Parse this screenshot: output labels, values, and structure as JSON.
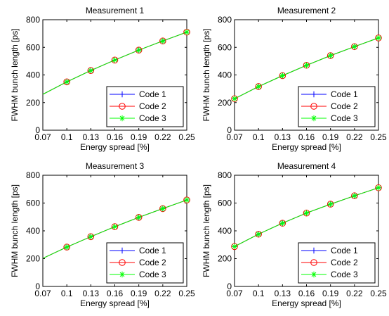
{
  "series_styles": [
    {
      "name": "Code 1",
      "color": "#0000ff",
      "marker": "plus"
    },
    {
      "name": "Code 2",
      "color": "#ff0000",
      "marker": "circle"
    },
    {
      "name": "Code 3",
      "color": "#00ff00",
      "marker": "star"
    }
  ],
  "chart_data": [
    {
      "type": "line",
      "title": "Measurement 1",
      "xlabel": "Energy spread [%]",
      "ylabel": "FWHM bunch length [ps]",
      "xlim": [
        0.07,
        0.25
      ],
      "ylim": [
        0,
        800
      ],
      "xticks": [
        0.07,
        0.1,
        0.13,
        0.16,
        0.19,
        0.22,
        0.25
      ],
      "xtick_labels": [
        "0.07",
        "0.1",
        "0.13",
        "0.16",
        "0.19",
        "0.22",
        "0.25"
      ],
      "yticks": [
        0,
        200,
        400,
        600,
        800
      ],
      "ytick_labels": [
        "0",
        "200",
        "400",
        "600",
        "800"
      ],
      "grid": false,
      "legend_position": "bottom-right",
      "line_x": [
        0.07,
        0.1,
        0.13,
        0.16,
        0.19,
        0.22,
        0.25
      ],
      "line_y": [
        260,
        350,
        432,
        508,
        580,
        646,
        710
      ],
      "marker_x": [
        0.1,
        0.13,
        0.16,
        0.19,
        0.22,
        0.25
      ],
      "series": [
        {
          "name": "Code 1",
          "values": [
            350,
            432,
            508,
            580,
            646,
            710
          ]
        },
        {
          "name": "Code 2",
          "values": [
            350,
            432,
            508,
            580,
            646,
            710
          ]
        },
        {
          "name": "Code 3",
          "values": [
            350,
            432,
            508,
            580,
            646,
            710
          ]
        }
      ]
    },
    {
      "type": "line",
      "title": "Measurement 2",
      "xlabel": "Energy spread [%]",
      "ylabel": "FWHM bunch length [ps]",
      "xlim": [
        0.07,
        0.25
      ],
      "ylim": [
        0,
        800
      ],
      "xticks": [
        0.07,
        0.1,
        0.13,
        0.16,
        0.19,
        0.22,
        0.25
      ],
      "xtick_labels": [
        "0.07",
        "0.1",
        "0.13",
        "0.16",
        "0.19",
        "0.22",
        "0.25"
      ],
      "yticks": [
        0,
        200,
        400,
        600,
        800
      ],
      "ytick_labels": [
        "0",
        "200",
        "400",
        "600",
        "800"
      ],
      "grid": false,
      "legend_position": "bottom-right",
      "line_x": [
        0.07,
        0.1,
        0.13,
        0.16,
        0.19,
        0.22,
        0.25
      ],
      "line_y": [
        228,
        316,
        395,
        470,
        540,
        605,
        668
      ],
      "marker_x": [
        0.07,
        0.1,
        0.13,
        0.16,
        0.19,
        0.22,
        0.25
      ],
      "series": [
        {
          "name": "Code 1",
          "values": [
            228,
            316,
            395,
            470,
            540,
            605,
            668
          ]
        },
        {
          "name": "Code 2",
          "values": [
            228,
            316,
            395,
            470,
            540,
            605,
            668
          ]
        },
        {
          "name": "Code 3",
          "values": [
            228,
            316,
            395,
            470,
            540,
            605,
            668
          ]
        }
      ]
    },
    {
      "type": "line",
      "title": "Measurement 3",
      "xlabel": "Energy spread [%]",
      "ylabel": "FWHM bunch length [ps]",
      "xlim": [
        0.07,
        0.25
      ],
      "ylim": [
        0,
        800
      ],
      "xticks": [
        0.07,
        0.1,
        0.13,
        0.16,
        0.19,
        0.22,
        0.25
      ],
      "xtick_labels": [
        "0.07",
        "0.1",
        "0.13",
        "0.16",
        "0.19",
        "0.22",
        "0.25"
      ],
      "yticks": [
        0,
        200,
        400,
        600,
        800
      ],
      "ytick_labels": [
        "0",
        "200",
        "400",
        "600",
        "800"
      ],
      "grid": false,
      "legend_position": "bottom-right",
      "line_x": [
        0.07,
        0.1,
        0.13,
        0.16,
        0.19,
        0.22,
        0.25
      ],
      "line_y": [
        202,
        283,
        358,
        430,
        497,
        560,
        622
      ],
      "marker_x": [
        0.1,
        0.13,
        0.16,
        0.19,
        0.22,
        0.25
      ],
      "series": [
        {
          "name": "Code 1",
          "values": [
            283,
            358,
            430,
            497,
            560,
            622
          ]
        },
        {
          "name": "Code 2",
          "values": [
            283,
            358,
            430,
            497,
            560,
            622
          ]
        },
        {
          "name": "Code 3",
          "values": [
            283,
            358,
            430,
            497,
            560,
            622
          ]
        }
      ]
    },
    {
      "type": "line",
      "title": "Measurement 4",
      "xlabel": "Energy spread [%]",
      "ylabel": "FWHM bunch length [ps]",
      "xlim": [
        0.07,
        0.25
      ],
      "ylim": [
        0,
        800
      ],
      "xticks": [
        0.07,
        0.1,
        0.13,
        0.16,
        0.19,
        0.22,
        0.25
      ],
      "xtick_labels": [
        "0.07",
        "0.1",
        "0.13",
        "0.16",
        "0.19",
        "0.22",
        "0.25"
      ],
      "yticks": [
        0,
        200,
        400,
        600,
        800
      ],
      "ytick_labels": [
        "0",
        "200",
        "400",
        "600",
        "800"
      ],
      "grid": false,
      "legend_position": "bottom-right",
      "line_x": [
        0.07,
        0.1,
        0.13,
        0.16,
        0.19,
        0.22,
        0.25
      ],
      "line_y": [
        287,
        376,
        455,
        528,
        592,
        652,
        710
      ],
      "marker_x": [
        0.07,
        0.1,
        0.13,
        0.16,
        0.19,
        0.22,
        0.25
      ],
      "series": [
        {
          "name": "Code 1",
          "values": [
            287,
            376,
            455,
            528,
            592,
            652,
            710
          ]
        },
        {
          "name": "Code 2",
          "values": [
            287,
            376,
            455,
            528,
            592,
            652,
            710
          ]
        },
        {
          "name": "Code 3",
          "values": [
            287,
            376,
            455,
            528,
            592,
            652,
            710
          ]
        }
      ]
    }
  ]
}
